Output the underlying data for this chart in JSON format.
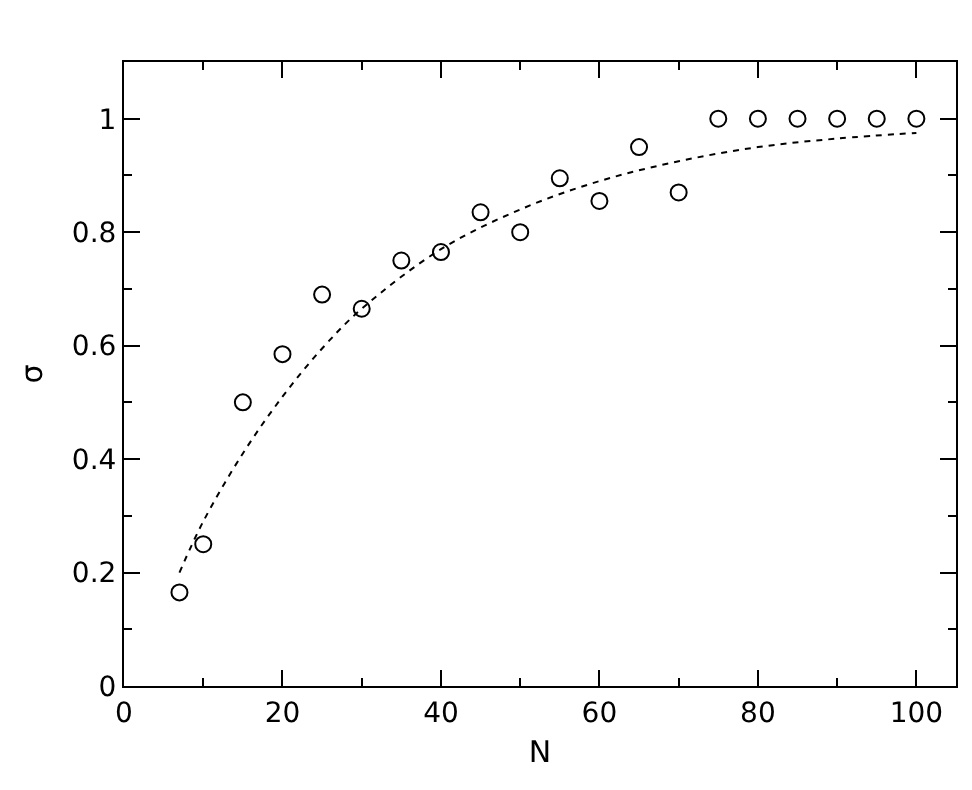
{
  "chart_data": {
    "type": "scatter",
    "xlabel": "N",
    "ylabel": "σ",
    "xlim": [
      0,
      105
    ],
    "ylim": [
      0,
      1.1
    ],
    "xticks": [
      0,
      20,
      40,
      60,
      80,
      100
    ],
    "yticks": [
      0,
      0.2,
      0.4,
      0.6,
      0.8,
      1
    ],
    "grid": false,
    "legend": false,
    "series": [
      {
        "color": "#000000",
        "marker": "circle",
        "x": [
          7,
          10,
          15,
          20,
          25,
          30,
          35,
          40,
          45,
          50,
          55,
          60,
          65,
          70,
          75,
          80,
          85,
          90,
          95,
          100
        ],
        "values": [
          0.165,
          0.25,
          0.5,
          0.585,
          0.69,
          0.665,
          0.75,
          0.765,
          0.835,
          0.8,
          0.895,
          0.855,
          0.95,
          0.87,
          1,
          1,
          1,
          1,
          1,
          1
        ]
      },
      {
        "type": "line",
        "color": "#000000",
        "marker": "none",
        "line_style": "dotted",
        "x": [
          7,
          10,
          15,
          20,
          25,
          30,
          40,
          50,
          60,
          70,
          80,
          90,
          100
        ],
        "values": [
          0.2,
          0.29,
          0.41,
          0.51,
          0.595,
          0.665,
          0.77,
          0.84,
          0.89,
          0.925,
          0.95,
          0.965,
          0.975
        ]
      }
    ]
  }
}
